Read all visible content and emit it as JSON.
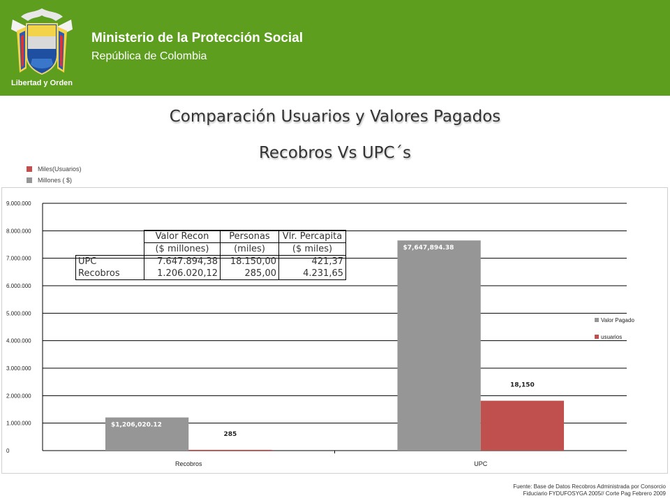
{
  "header": {
    "ministry": "Ministerio de la Protección Social",
    "country": "República de Colombia",
    "logo_motto": "Libertad y Orden",
    "color": "#5d9e1f"
  },
  "title": {
    "line1": "Comparación Usuarios y Valores Pagados",
    "line2": "Recobros Vs UPC´s"
  },
  "units_legend": [
    {
      "label": "Miles(Usuarios)",
      "color": "#c0504d"
    },
    {
      "label": "Millones ( $)",
      "color": "#969696"
    }
  ],
  "table": {
    "headers": [
      [
        "",
        ""
      ],
      [
        "Valor Recon",
        "($ millones)"
      ],
      [
        "Personas",
        "(miles)"
      ],
      [
        "Vlr. Percapita",
        "($ miles)"
      ]
    ],
    "rows": [
      [
        "UPC",
        "7.647.894,38",
        "18.150,00",
        "421,37"
      ],
      [
        "Recobros",
        "1.206.020,12",
        "285,00",
        "4.231,65"
      ]
    ]
  },
  "chart_data": {
    "type": "bar",
    "categories": [
      "Recobros",
      "UPC"
    ],
    "series": [
      {
        "name": "Valor Pagado",
        "color": "#969696",
        "values": [
          1206020.12,
          7647894.38
        ],
        "labels": [
          "$1,206,020.12",
          "$7,647,894.38"
        ]
      },
      {
        "name": "usuarios",
        "color": "#c0504d",
        "values": [
          285,
          18150
        ],
        "labels": [
          "285",
          "18,150"
        ]
      }
    ],
    "ylim": [
      0,
      9000000
    ],
    "yticks": [
      "0",
      "1.000.000",
      "2.000.000",
      "3.000.000",
      "4.000.000",
      "5.000.000",
      "6.000.000",
      "7.000.000",
      "8.000.000",
      "9.000.000"
    ],
    "grid": true,
    "legend_position": "right",
    "usuarios_display_scale": 100
  },
  "source": {
    "line1": "Fuente: Base de Datos Recobros Administrada por Consorcio",
    "line2": "Fiduciario FYDUFOSYGA 2005// Corte Pag Febrero 2009"
  }
}
